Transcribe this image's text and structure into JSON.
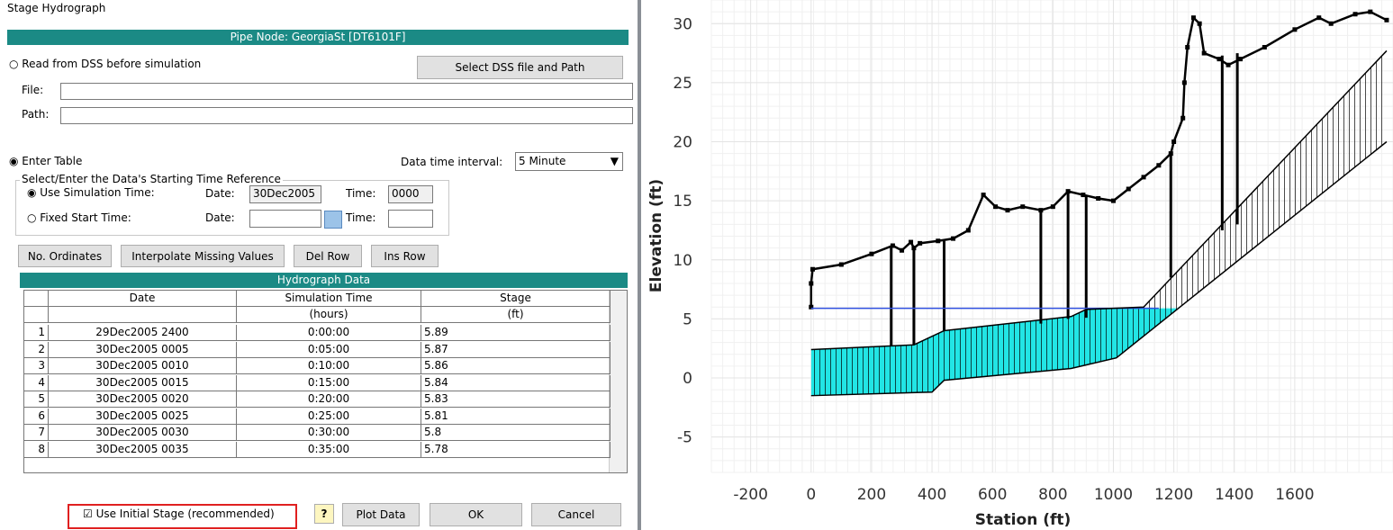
{
  "dialog": {
    "title": "Stage Hydrograph",
    "node_bar": "Pipe Node: GeorgiaSt [DT6101F]",
    "dss_option": "Read from DSS before simulation",
    "select_dss": "Select DSS file and Path",
    "file_label": "File:",
    "path_label": "Path:",
    "table_option": "Enter Table",
    "interval_label": "Data time interval:",
    "interval": "5 Minute",
    "time_ref": "Select/Enter the Data's Starting Time Reference",
    "use_sim": "Use Simulation Time:",
    "date_label": "Date:",
    "sim_date": "30Dec2005",
    "time_label": "Time:",
    "sim_time": "0000",
    "fixed_start": "Fixed Start Time:",
    "buttons": [
      "No. Ordinates",
      "Interpolate Missing Values",
      "Del Row",
      "Ins Row"
    ],
    "table": {
      "title": "Hydrograph Data",
      "headers": [
        "Date",
        "Simulation Time",
        "Stage"
      ],
      "units": [
        null,
        "(hours)",
        "(ft)"
      ],
      "rows": [
        [
          "1",
          "29Dec2005 2400",
          "0:00:00",
          "5.89"
        ],
        [
          "2",
          "30Dec2005 0005",
          "0:05:00",
          "5.87"
        ],
        [
          "3",
          "30Dec2005 0010",
          "0:10:00",
          "5.86"
        ],
        [
          "4",
          "30Dec2005 0015",
          "0:15:00",
          "5.84"
        ],
        [
          "5",
          "30Dec2005 0020",
          "0:20:00",
          "5.83"
        ],
        [
          "6",
          "30Dec2005 0025",
          "0:25:00",
          "5.81"
        ],
        [
          "7",
          "30Dec2005 0030",
          "0:30:00",
          "5.8"
        ],
        [
          "8",
          "30Dec2005 0035",
          "0:35:00",
          "5.78"
        ]
      ]
    },
    "initial_stage": "Use Initial Stage (recommended)",
    "help": "?",
    "plot": "Plot Data",
    "ok": "OK",
    "cancel": "Cancel"
  },
  "chart_data": {
    "type": "line",
    "x_label": "Station (ft)",
    "y_label": "Elevation (ft)",
    "xlim": [
      -330,
      1925
    ],
    "ylim": [
      -8,
      32
    ],
    "xticks": [
      -200,
      0,
      200,
      400,
      600,
      800,
      1000,
      1200,
      1400,
      1600
    ],
    "yticks": [
      -5,
      0,
      5,
      10,
      15,
      20,
      25,
      30
    ],
    "grid": true,
    "water_fill": "#22e5e5",
    "series": [
      {
        "color": "#000000",
        "markers": true,
        "x": [
          0,
          0,
          5,
          100,
          200,
          270,
          300,
          330,
          340,
          360,
          420,
          470,
          520,
          570,
          610,
          650,
          700,
          760,
          800,
          850,
          900,
          950,
          1000,
          1050,
          1100,
          1150,
          1190,
          1200,
          1230,
          1235,
          1245,
          1265,
          1285,
          1300,
          1350,
          1380,
          1420,
          1500,
          1600,
          1680,
          1720,
          1800,
          1850,
          1904
        ],
        "values": [
          6,
          8,
          9.2,
          9.6,
          10.5,
          11.2,
          10.8,
          11.5,
          11,
          11.4,
          11.6,
          11.8,
          12.5,
          15.5,
          14.5,
          14.2,
          14.5,
          14.2,
          14.5,
          15.8,
          15.5,
          15.2,
          15,
          16,
          17,
          18,
          19,
          20,
          22,
          25,
          28,
          30.5,
          30,
          27.5,
          27,
          26.5,
          27,
          28,
          29.5,
          30.5,
          30,
          30.8,
          31,
          30.3
        ]
      },
      {
        "color": "#3050e0",
        "markers": false,
        "x": [
          0,
          1150
        ],
        "values": [
          5.9,
          5.9
        ]
      },
      {
        "color": "#000000",
        "markers": false,
        "x": [
          0,
          340,
          440,
          860,
          910,
          1100,
          1904
        ],
        "values": [
          2.4,
          2.8,
          4,
          5.2,
          5.8,
          6,
          27.7
        ]
      },
      {
        "color": "#000000",
        "markers": false,
        "x": [
          0,
          400,
          440,
          860,
          1010,
          1904
        ],
        "values": [
          -1.5,
          -1.2,
          -0.2,
          0.8,
          1.7,
          20
        ]
      }
    ],
    "stems": {
      "x": [
        265,
        340,
        440,
        760,
        850,
        910,
        1190,
        1360,
        1410
      ],
      "y0": [
        2.7,
        2.8,
        4,
        4.6,
        5,
        5.1,
        8.5,
        12.5,
        13
      ],
      "y1": [
        11.1,
        11.2,
        11.6,
        14.2,
        15.7,
        15.4,
        19,
        27.3,
        27.5
      ]
    }
  }
}
